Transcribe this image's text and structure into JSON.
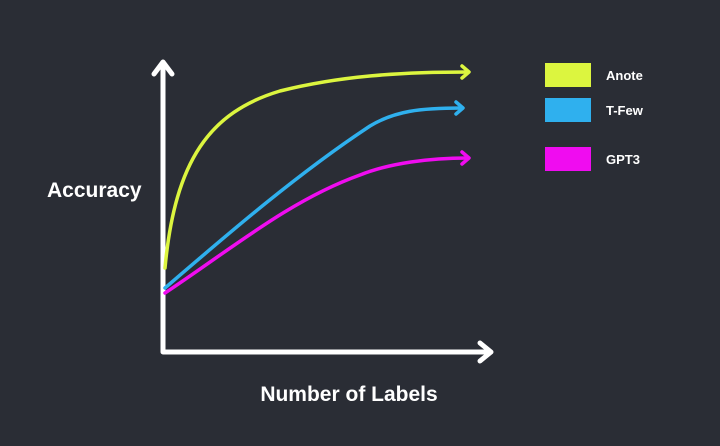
{
  "axes": {
    "y_label": "Accuracy",
    "x_label": "Number of Labels"
  },
  "legend": [
    {
      "name": "Anote",
      "color": "#dcf53f"
    },
    {
      "name": "T-Few",
      "color": "#2fb0ee"
    },
    {
      "name": "GPT3",
      "color": "#f00cf0"
    }
  ]
}
